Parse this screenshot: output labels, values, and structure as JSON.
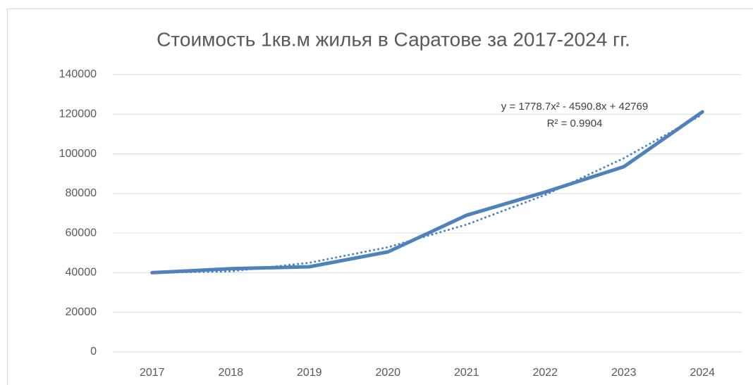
{
  "chart_data": {
    "type": "line",
    "title": "Стоимость 1кв.м жилья в Саратове за 2017-2024 гг.",
    "categories": [
      "2017",
      "2018",
      "2019",
      "2020",
      "2021",
      "2022",
      "2023",
      "2024"
    ],
    "series": [
      {
        "color": "#4f81bd",
        "values": [
          40000,
          42000,
          43000,
          50500,
          69000,
          80700,
          93500,
          121200
        ]
      }
    ],
    "trendline": {
      "color": "#4f81bd",
      "style": "dotted",
      "values": [
        39957,
        40702,
        45004,
        52863,
        64279,
        79252,
        97783,
        119870
      ]
    },
    "trendline_equation": "y = 1778.7x² - 4590.8x + 42769",
    "trendline_r2": "R² = 0.9904",
    "ylim": [
      0,
      140000
    ],
    "yticks": [
      0,
      20000,
      40000,
      60000,
      80000,
      100000,
      120000,
      140000
    ],
    "grid": true
  }
}
